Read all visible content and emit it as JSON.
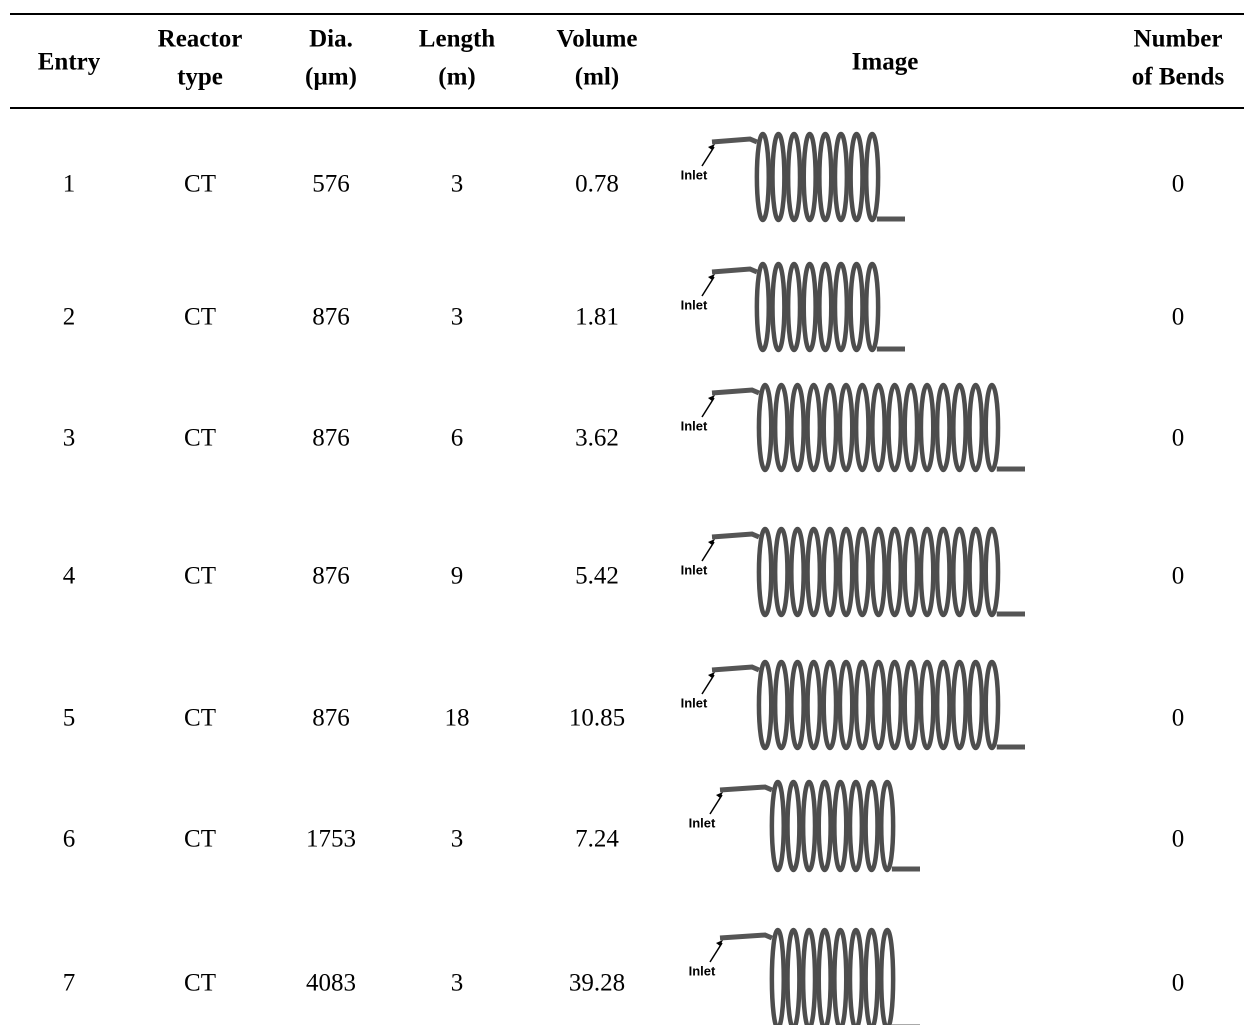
{
  "table": {
    "headers": [
      [
        "Entry"
      ],
      [
        "Reactor",
        "type"
      ],
      [
        "Dia.",
        "(µm)"
      ],
      [
        "Length",
        "(m)"
      ],
      [
        "Volume",
        "(ml)"
      ],
      [
        "Image"
      ],
      [
        "Number",
        "of Bends"
      ]
    ],
    "rows": [
      {
        "entry": "1",
        "reactor_type": "CT",
        "dia": "576",
        "length": "3",
        "volume": "0.78",
        "inlet_label": "Inlet",
        "bends": "0"
      },
      {
        "entry": "2",
        "reactor_type": "CT",
        "dia": "876",
        "length": "3",
        "volume": "1.81",
        "inlet_label": "Inlet",
        "bends": "0"
      },
      {
        "entry": "3",
        "reactor_type": "CT",
        "dia": "876",
        "length": "6",
        "volume": "3.62",
        "inlet_label": "Inlet",
        "bends": "0"
      },
      {
        "entry": "4",
        "reactor_type": "CT",
        "dia": "876",
        "length": "9",
        "volume": "5.42",
        "inlet_label": "Inlet",
        "bends": "0"
      },
      {
        "entry": "5",
        "reactor_type": "CT",
        "dia": "876",
        "length": "18",
        "volume": "10.85",
        "inlet_label": "Inlet",
        "bends": "0"
      },
      {
        "entry": "6",
        "reactor_type": "CT",
        "dia": "1753",
        "length": "3",
        "volume": "7.24",
        "inlet_label": "Inlet",
        "bends": "0"
      },
      {
        "entry": "7",
        "reactor_type": "CT",
        "dia": "4083",
        "length": "3",
        "volume": "39.28",
        "inlet_label": "Inlet",
        "bends": "0"
      }
    ]
  }
}
